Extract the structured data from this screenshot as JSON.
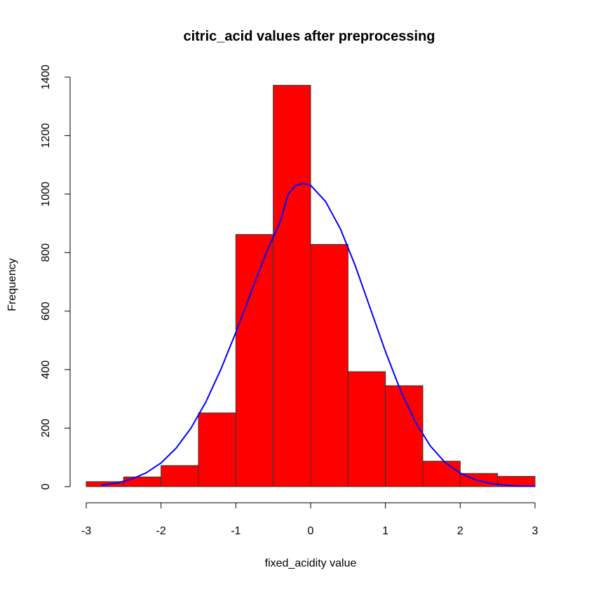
{
  "chart_data": {
    "type": "bar",
    "title": "citric_acid values after preprocessing",
    "xlabel": "fixed_acidity value",
    "ylabel": "Frequency",
    "xlim": [
      -3,
      3
    ],
    "ylim": [
      0,
      1400
    ],
    "x_ticks": [
      -3,
      -2,
      -1,
      0,
      1,
      2,
      3
    ],
    "y_ticks": [
      0,
      200,
      400,
      600,
      800,
      1000,
      1200,
      1400
    ],
    "bins": [
      {
        "start": -3.0,
        "end": -2.5,
        "count": 17
      },
      {
        "start": -2.5,
        "end": -2.0,
        "count": 33
      },
      {
        "start": -2.0,
        "end": -1.5,
        "count": 72
      },
      {
        "start": -1.5,
        "end": -1.0,
        "count": 252
      },
      {
        "start": -1.0,
        "end": -0.5,
        "count": 862
      },
      {
        "start": -0.5,
        "end": 0.0,
        "count": 1372
      },
      {
        "start": 0.0,
        "end": 0.5,
        "count": 828
      },
      {
        "start": 0.5,
        "end": 1.0,
        "count": 393
      },
      {
        "start": 1.0,
        "end": 1.5,
        "count": 345
      },
      {
        "start": 1.5,
        "end": 2.0,
        "count": 87
      },
      {
        "start": 2.0,
        "end": 2.5,
        "count": 45
      },
      {
        "start": 2.5,
        "end": 3.0,
        "count": 35
      }
    ],
    "density_curve": {
      "x": [
        -2.8,
        -2.6,
        -2.4,
        -2.2,
        -2.0,
        -1.8,
        -1.6,
        -1.4,
        -1.2,
        -1.0,
        -0.8,
        -0.6,
        -0.4,
        -0.3,
        -0.2,
        -0.1,
        0.0,
        0.2,
        0.4,
        0.6,
        0.8,
        1.0,
        1.2,
        1.4,
        1.6,
        1.8,
        2.0,
        2.2,
        2.4,
        2.6,
        2.8,
        3.0
      ],
      "y": [
        5,
        12,
        25,
        47,
        81,
        131,
        200,
        290,
        401,
        527,
        662,
        795,
        910,
        1000,
        1030,
        1036,
        1030,
        975,
        880,
        753,
        608,
        462,
        330,
        221,
        139,
        82,
        46,
        24,
        11,
        5,
        2,
        1
      ]
    },
    "bar_color": "#ff0000",
    "curve_color": "#0000ff",
    "grid": false,
    "legend": "none"
  }
}
